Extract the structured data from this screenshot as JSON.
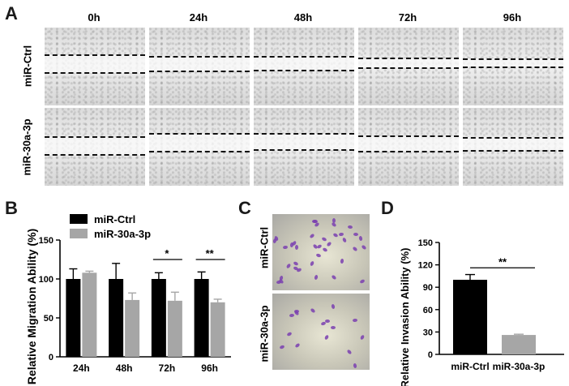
{
  "panel_a": {
    "letter": "A",
    "time_points": [
      "0h",
      "24h",
      "48h",
      "72h",
      "96h"
    ],
    "rows": [
      "miR-Ctrl",
      "miR-30a-3p"
    ]
  },
  "panel_b": {
    "letter": "B"
  },
  "panel_c": {
    "letter": "C",
    "rows": [
      "miR-Ctrl",
      "miR-30a-3p"
    ]
  },
  "panel_d": {
    "letter": "D"
  },
  "chart_data": [
    {
      "panel": "B",
      "type": "bar",
      "ylabel": "Relative Migration Ability (%)",
      "xlabel": "",
      "categories": [
        "24h",
        "48h",
        "72h",
        "96h"
      ],
      "ylim": [
        0,
        150
      ],
      "yticks": [
        0,
        50,
        100,
        150
      ],
      "legend_placement": "top-left",
      "series": [
        {
          "name": "miR-Ctrl",
          "color": "#000000",
          "values": [
            100,
            100,
            100,
            100
          ],
          "errors": [
            13,
            20,
            8,
            9
          ]
        },
        {
          "name": "miR-30a-3p",
          "color": "#a6a6a6",
          "values": [
            108,
            73,
            72,
            70
          ],
          "errors": [
            2,
            9,
            11,
            4
          ]
        }
      ],
      "significance": [
        {
          "category": "72h",
          "label": "*"
        },
        {
          "category": "96h",
          "label": "**"
        }
      ]
    },
    {
      "panel": "D",
      "type": "bar",
      "ylabel": "Relative Invasion Ability (%)",
      "xlabel": "",
      "categories": [
        "miR-Ctrl",
        "miR-30a-3p"
      ],
      "ylim": [
        0,
        150
      ],
      "yticks": [
        0,
        30,
        60,
        90,
        120,
        150
      ],
      "series": [
        {
          "name": "",
          "colors": [
            "#000000",
            "#a6a6a6"
          ],
          "values": [
            100,
            26
          ],
          "errors": [
            7,
            1
          ]
        }
      ],
      "significance": [
        {
          "label": "**"
        }
      ]
    }
  ]
}
